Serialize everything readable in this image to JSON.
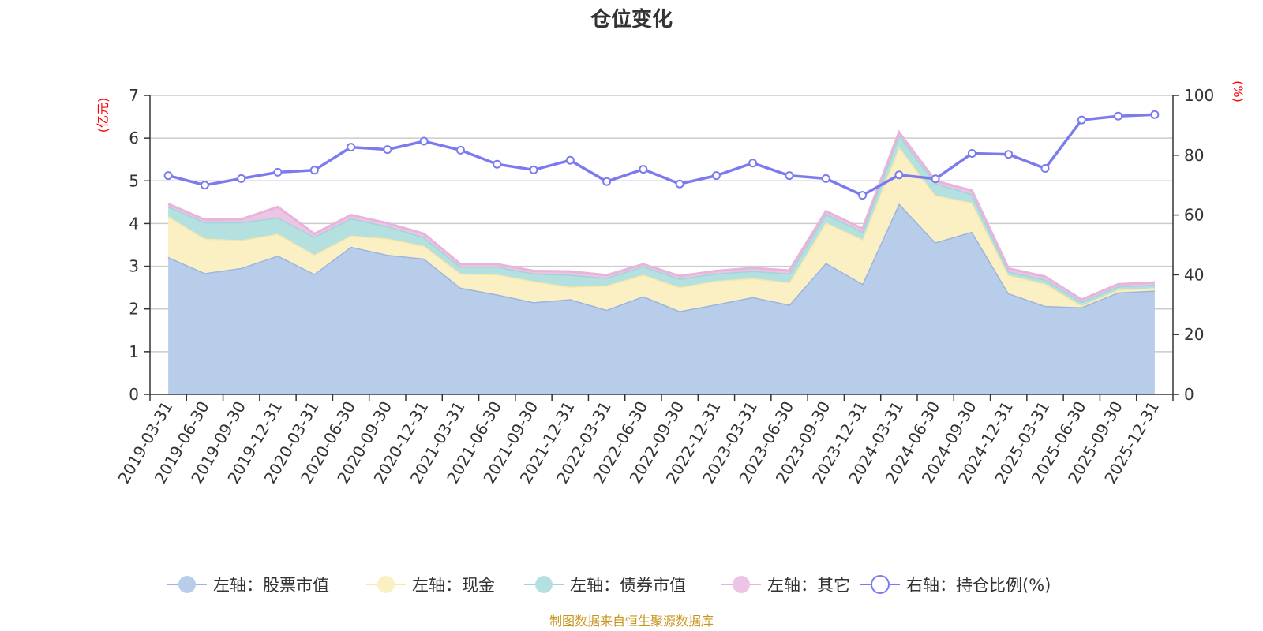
{
  "chart_data": {
    "type": "area+line",
    "title": "仓位变化",
    "source": "制图数据来自恒生聚源数据库",
    "left_axis": {
      "unit": "(亿元)",
      "ylim": [
        0,
        7
      ],
      "ticks": [
        "0",
        "1",
        "2",
        "3",
        "4",
        "5",
        "6",
        "7"
      ]
    },
    "right_axis": {
      "unit": "(%)",
      "ylim": [
        0,
        100
      ],
      "ticks": [
        "0",
        "20",
        "40",
        "60",
        "80",
        "100"
      ]
    },
    "categories": [
      "2019-03-31",
      "2019-06-30",
      "2019-09-30",
      "2019-12-31",
      "2020-03-31",
      "2020-06-30",
      "2020-09-30",
      "2020-12-31",
      "2021-03-31",
      "2021-06-30",
      "2021-09-30",
      "2021-12-31",
      "2022-03-31",
      "2022-06-30",
      "2022-09-30",
      "2022-12-31",
      "2023-03-31",
      "2023-06-30",
      "2023-09-30",
      "2023-12-31",
      "2024-03-31",
      "2024-06-30",
      "2024-09-30",
      "2024-12-31",
      "2025-03-31",
      "2025-06-30",
      "2025-09-30",
      "2025-12-31"
    ],
    "stacked_series": [
      {
        "name": "左轴：股票市值",
        "fill": "#b8cdea",
        "stroke": "#9bb5df",
        "values": [
          3.22,
          2.84,
          2.96,
          3.25,
          2.82,
          3.46,
          3.27,
          3.18,
          2.5,
          2.34,
          2.16,
          2.23,
          1.98,
          2.3,
          1.95,
          2.11,
          2.28,
          2.1,
          3.08,
          2.59,
          4.47,
          3.56,
          3.81,
          2.37,
          2.07,
          2.04,
          2.39,
          2.43
        ]
      },
      {
        "name": "左轴：现金",
        "fill": "#fbefc4",
        "stroke": "#f8e8a8",
        "values": [
          0.95,
          0.81,
          0.65,
          0.51,
          0.45,
          0.26,
          0.38,
          0.3,
          0.33,
          0.47,
          0.49,
          0.29,
          0.57,
          0.5,
          0.56,
          0.55,
          0.44,
          0.52,
          0.94,
          1.04,
          1.32,
          1.1,
          0.68,
          0.42,
          0.52,
          0.04,
          0.06,
          0.06
        ]
      },
      {
        "name": "左轴：债券市值",
        "fill": "#b5e0e0",
        "stroke": "#9ed6d6",
        "values": [
          0.23,
          0.38,
          0.42,
          0.38,
          0.42,
          0.4,
          0.29,
          0.2,
          0.16,
          0.18,
          0.18,
          0.28,
          0.18,
          0.2,
          0.2,
          0.17,
          0.17,
          0.21,
          0.2,
          0.18,
          0.28,
          0.28,
          0.2,
          0.09,
          0.1,
          0.09,
          0.08,
          0.08
        ]
      },
      {
        "name": "左轴：其它",
        "fill": "#ecc4e4",
        "stroke": "#e8b4dc",
        "values": [
          0.06,
          0.06,
          0.07,
          0.25,
          0.07,
          0.08,
          0.07,
          0.08,
          0.06,
          0.06,
          0.06,
          0.08,
          0.06,
          0.05,
          0.06,
          0.06,
          0.07,
          0.07,
          0.07,
          0.07,
          0.07,
          0.06,
          0.08,
          0.07,
          0.07,
          0.05,
          0.05,
          0.05
        ]
      }
    ],
    "line_series": {
      "name": "右轴：持仓比例(%)",
      "color": "#7b7bef",
      "values": [
        73.2,
        70.0,
        72.2,
        74.3,
        75.0,
        82.7,
        81.9,
        84.7,
        81.7,
        77.0,
        75.1,
        78.3,
        71.2,
        75.3,
        70.4,
        73.2,
        77.4,
        73.2,
        72.2,
        66.6,
        73.4,
        72.1,
        80.6,
        80.3,
        75.6,
        91.8,
        93.1,
        93.6
      ]
    }
  }
}
